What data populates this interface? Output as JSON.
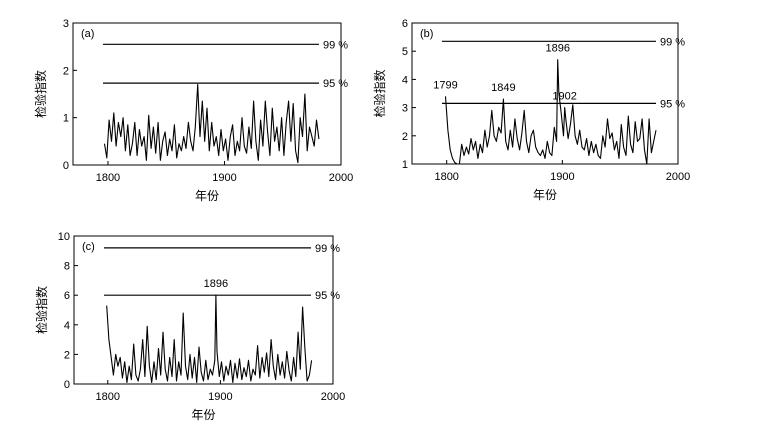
{
  "chart_data": [
    {
      "type": "line",
      "panel_label": "(a)",
      "xlabel": "年份",
      "ylabel": "检验指数",
      "xlim": [
        1770,
        2000
      ],
      "ylim": [
        0,
        3
      ],
      "xticks": [
        "1800",
        "1900",
        "2000"
      ],
      "yticks": [
        "0",
        "1",
        "2",
        "3"
      ],
      "reference_lines": [
        {
          "label": "99 %",
          "value": 2.55
        },
        {
          "label": "95 %",
          "value": 1.73
        }
      ],
      "annotations": [],
      "series": [
        {
          "x": [
            1797,
            1799,
            1801,
            1803,
            1805,
            1807,
            1809,
            1811,
            1813,
            1815,
            1817,
            1819,
            1821,
            1823,
            1825,
            1827,
            1829,
            1831,
            1833,
            1835,
            1837,
            1839,
            1841,
            1843,
            1845,
            1847,
            1849,
            1851,
            1853,
            1855,
            1857,
            1859,
            1861,
            1863,
            1865,
            1867,
            1869,
            1871,
            1873,
            1875,
            1877,
            1879,
            1881,
            1883,
            1885,
            1887,
            1889,
            1891,
            1893,
            1895,
            1897,
            1899,
            1901,
            1903,
            1905,
            1907,
            1909,
            1911,
            1913,
            1915,
            1917,
            1919,
            1921,
            1923,
            1925,
            1927,
            1929,
            1931,
            1933,
            1935,
            1937,
            1939,
            1941,
            1943,
            1945,
            1947,
            1949,
            1951,
            1953,
            1955,
            1957,
            1959,
            1961,
            1963,
            1965,
            1967,
            1969,
            1971,
            1973,
            1975,
            1977,
            1979,
            1981
          ],
          "y": [
            0.45,
            0.15,
            0.95,
            0.5,
            1.1,
            0.4,
            0.9,
            0.6,
            1.0,
            0.3,
            0.85,
            0.2,
            0.45,
            0.9,
            0.2,
            0.75,
            0.4,
            0.6,
            0.1,
            1.05,
            0.35,
            0.8,
            0.25,
            0.9,
            0.1,
            0.5,
            0.7,
            0.2,
            0.55,
            0.3,
            0.85,
            0.15,
            0.45,
            0.3,
            0.6,
            0.35,
            0.9,
            0.5,
            0.3,
            0.8,
            1.7,
            0.6,
            1.35,
            0.5,
            1.2,
            0.3,
            0.9,
            0.4,
            0.6,
            0.2,
            0.75,
            0.3,
            0.55,
            0.1,
            0.6,
            0.85,
            0.2,
            0.5,
            0.3,
            1.0,
            0.4,
            0.25,
            0.8,
            0.35,
            1.35,
            0.5,
            0.1,
            0.95,
            0.4,
            1.35,
            0.7,
            0.2,
            1.2,
            0.5,
            0.8,
            0.3,
            1.0,
            0.2,
            0.9,
            1.35,
            0.5,
            1.3,
            0.3,
            0.05,
            1.0,
            0.6,
            1.5,
            0.3,
            0.8,
            0.6,
            0.4,
            0.95,
            0.55
          ]
        }
      ]
    },
    {
      "type": "line",
      "panel_label": "(b)",
      "xlabel": "年份",
      "ylabel": "检验指数",
      "xlim": [
        1770,
        2000
      ],
      "ylim": [
        1,
        6
      ],
      "xticks": [
        "1800",
        "1900",
        "2000"
      ],
      "yticks": [
        "1",
        "2",
        "3",
        "4",
        "5",
        "6"
      ],
      "reference_lines": [
        {
          "label": "99 %",
          "value": 5.35
        },
        {
          "label": "95 %",
          "value": 3.15
        }
      ],
      "annotations": [
        {
          "text": "1799",
          "x": 1799,
          "y": 3.4
        },
        {
          "text": "1849",
          "x": 1849,
          "y": 3.3
        },
        {
          "text": "1896",
          "x": 1896,
          "y": 4.7
        },
        {
          "text": "1902",
          "x": 1902,
          "y": 3.0
        }
      ],
      "series": [
        {
          "x": [
            1799,
            1801,
            1803,
            1805,
            1807,
            1809,
            1811,
            1813,
            1815,
            1817,
            1819,
            1821,
            1823,
            1825,
            1827,
            1829,
            1831,
            1833,
            1835,
            1837,
            1839,
            1841,
            1843,
            1845,
            1847,
            1849,
            1851,
            1853,
            1855,
            1857,
            1859,
            1861,
            1863,
            1865,
            1867,
            1869,
            1871,
            1873,
            1875,
            1877,
            1879,
            1881,
            1883,
            1885,
            1887,
            1889,
            1891,
            1893,
            1895,
            1896,
            1897,
            1899,
            1901,
            1902,
            1903,
            1905,
            1907,
            1909,
            1911,
            1913,
            1915,
            1917,
            1919,
            1921,
            1923,
            1925,
            1927,
            1929,
            1931,
            1933,
            1935,
            1937,
            1939,
            1941,
            1943,
            1945,
            1947,
            1949,
            1951,
            1953,
            1955,
            1957,
            1959,
            1961,
            1963,
            1965,
            1967,
            1969,
            1971,
            1973,
            1975,
            1977,
            1979,
            1981
          ],
          "y": [
            3.4,
            2.2,
            1.5,
            1.2,
            1.05,
            1.0,
            1.0,
            1.7,
            1.3,
            1.6,
            1.35,
            1.9,
            1.5,
            1.8,
            1.2,
            1.7,
            1.4,
            2.2,
            1.6,
            2.0,
            2.9,
            2.0,
            1.8,
            2.3,
            2.1,
            3.3,
            1.8,
            1.5,
            2.2,
            1.6,
            2.6,
            1.9,
            1.5,
            2.1,
            2.9,
            1.8,
            1.4,
            2.0,
            2.2,
            1.6,
            1.4,
            1.3,
            1.5,
            1.2,
            1.8,
            1.4,
            1.3,
            2.3,
            1.8,
            4.7,
            3.5,
            2.8,
            2.0,
            3.0,
            2.6,
            1.9,
            2.4,
            3.1,
            2.0,
            1.7,
            2.2,
            1.6,
            1.5,
            1.9,
            1.3,
            1.8,
            1.4,
            1.7,
            1.3,
            1.2,
            2.0,
            1.6,
            2.6,
            1.9,
            2.1,
            1.5,
            1.8,
            1.2,
            2.4,
            1.6,
            1.3,
            2.7,
            1.7,
            1.4,
            2.5,
            1.8,
            1.9,
            2.6,
            1.5,
            1.0,
            2.6,
            1.4,
            1.8,
            2.2
          ]
        }
      ]
    },
    {
      "type": "line",
      "panel_label": "(c)",
      "xlabel": "年份",
      "ylabel": "检验指数",
      "xlim": [
        1770,
        2000
      ],
      "ylim": [
        0,
        10
      ],
      "xticks": [
        "1800",
        "1900",
        "2000"
      ],
      "yticks": [
        "0",
        "2",
        "4",
        "6",
        "8",
        "10"
      ],
      "reference_lines": [
        {
          "label": "99 %",
          "value": 9.2
        },
        {
          "label": "95 %",
          "value": 6.0
        }
      ],
      "annotations": [
        {
          "text": "1896",
          "x": 1896,
          "y": 6.0
        }
      ],
      "series": [
        {
          "x": [
            1799,
            1801,
            1803,
            1805,
            1807,
            1809,
            1811,
            1813,
            1815,
            1817,
            1819,
            1821,
            1823,
            1825,
            1827,
            1829,
            1831,
            1833,
            1835,
            1837,
            1839,
            1841,
            1843,
            1845,
            1847,
            1849,
            1851,
            1853,
            1855,
            1857,
            1859,
            1861,
            1863,
            1865,
            1867,
            1869,
            1871,
            1873,
            1875,
            1877,
            1879,
            1881,
            1883,
            1885,
            1887,
            1889,
            1891,
            1893,
            1895,
            1896,
            1897,
            1899,
            1901,
            1903,
            1905,
            1907,
            1909,
            1911,
            1913,
            1915,
            1917,
            1919,
            1921,
            1923,
            1925,
            1927,
            1929,
            1931,
            1933,
            1935,
            1937,
            1939,
            1941,
            1943,
            1945,
            1947,
            1949,
            1951,
            1953,
            1955,
            1957,
            1959,
            1961,
            1963,
            1965,
            1967,
            1969,
            1971,
            1973,
            1975,
            1977,
            1979,
            1981
          ],
          "y": [
            5.3,
            3.0,
            1.8,
            0.6,
            2.0,
            1.2,
            1.8,
            0.4,
            1.5,
            0.1,
            1.2,
            0.3,
            2.7,
            0.6,
            0.2,
            1.0,
            3.0,
            0.5,
            3.9,
            1.2,
            0.1,
            1.5,
            0.3,
            2.4,
            0.6,
            3.5,
            1.0,
            0.2,
            1.8,
            0.5,
            3.0,
            0.2,
            1.5,
            0.6,
            4.8,
            1.2,
            0.3,
            2.0,
            0.4,
            1.8,
            0.1,
            2.5,
            0.8,
            0.2,
            1.6,
            0.3,
            1.0,
            0.6,
            1.6,
            6.0,
            2.2,
            0.5,
            1.5,
            0.2,
            1.2,
            0.6,
            1.6,
            0.1,
            1.4,
            0.4,
            1.7,
            0.3,
            1.1,
            0.5,
            1.6,
            0.2,
            1.0,
            0.6,
            2.6,
            0.4,
            1.8,
            0.8,
            2.1,
            0.5,
            3.0,
            1.2,
            0.3,
            2.0,
            0.6,
            1.5,
            0.4,
            2.2,
            0.9,
            0.2,
            1.8,
            0.5,
            3.5,
            1.0,
            5.2,
            2.5,
            0.2,
            0.6,
            1.6
          ]
        }
      ]
    }
  ]
}
